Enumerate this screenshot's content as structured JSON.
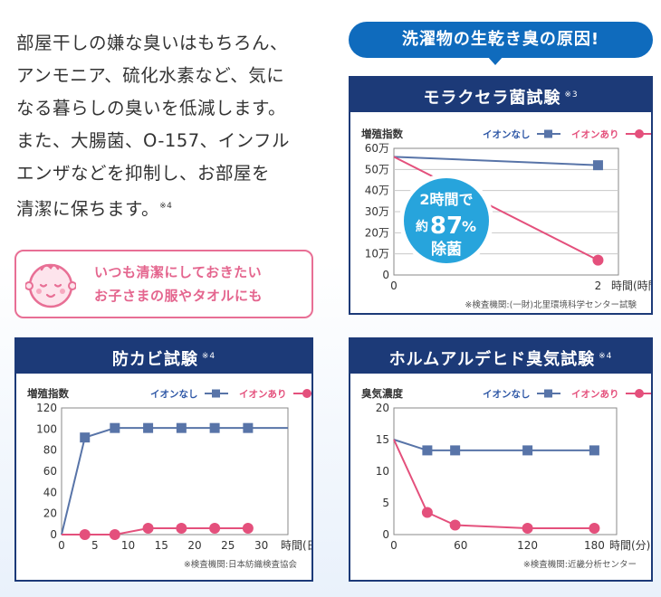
{
  "intro": {
    "lines": [
      "部屋干しの嫌な臭いはもちろん、",
      "アンモニア、硫化水素など、気に",
      "なる暮らしの臭いを低減します。",
      "また、大腸菌、O-157、インフル",
      "エンザなどを抑制し、お部屋を",
      "清潔に保ちます。"
    ],
    "note_mark": "※4"
  },
  "callout": {
    "line1": "いつも清潔にしておきたい",
    "line2": "お子さまの服やタオルにも",
    "icon": "baby-face-icon"
  },
  "cause_banner": "洗濯物の生乾き臭の原因!",
  "legend": {
    "no_ion": "イオンなし",
    "with_ion": "イオンあり"
  },
  "colors": {
    "navy": "#1c3a78",
    "blue_series": "#5874a8",
    "pink_series": "#e4507c",
    "badge": "#27a4dc"
  },
  "badge": {
    "line1": "2時間で",
    "prefix": "約",
    "number": "87",
    "percent": "%",
    "line3": "除菌"
  },
  "chart_data": [
    {
      "type": "line",
      "title": "モラクセラ菌試験",
      "title_note": "※3",
      "ylabel": "増殖指数",
      "xlabel": "時間(時間)",
      "y_ticks": [
        "0",
        "10万",
        "20万",
        "30万",
        "40万",
        "50万",
        "60万"
      ],
      "y_tick_values": [
        0,
        100000,
        200000,
        300000,
        400000,
        500000,
        600000
      ],
      "x_ticks": [
        "0",
        "2"
      ],
      "x_tick_values": [
        0,
        2
      ],
      "xlim": [
        0,
        2.2
      ],
      "ylim": [
        0,
        600000
      ],
      "series": [
        {
          "name": "イオンなし",
          "x": [
            0,
            2
          ],
          "y": [
            560000,
            520000
          ]
        },
        {
          "name": "イオンあり",
          "x": [
            0,
            2
          ],
          "y": [
            560000,
            70000
          ]
        }
      ],
      "markers": {
        "イオンなし": [
          1
        ],
        "イオンあり": [
          1
        ]
      },
      "source": "※検査機関:(一財)北里環境科学センター試験"
    },
    {
      "type": "line",
      "title": "防カビ試験",
      "title_note": "※4",
      "ylabel": "増殖指数",
      "xlabel": "時間(日)",
      "y_ticks": [
        "0",
        "20",
        "40",
        "60",
        "80",
        "100",
        "120"
      ],
      "y_tick_values": [
        0,
        20,
        40,
        60,
        80,
        100,
        120
      ],
      "x_ticks": [
        "0",
        "5",
        "10",
        "15",
        "20",
        "25",
        "30"
      ],
      "x_tick_values": [
        0,
        5,
        10,
        15,
        20,
        25,
        30
      ],
      "xlim": [
        0,
        34
      ],
      "ylim": [
        0,
        120
      ],
      "series": [
        {
          "name": "イオンなし",
          "x": [
            0,
            3.5,
            8,
            13,
            18,
            23,
            28,
            34
          ],
          "y": [
            0,
            92,
            101,
            101,
            101,
            101,
            101,
            101
          ]
        },
        {
          "name": "イオンあり",
          "x": [
            0,
            3.5,
            8,
            13,
            18,
            23,
            28
          ],
          "y": [
            0,
            0,
            0,
            6,
            6,
            6,
            6
          ]
        }
      ],
      "markers": {
        "イオンなし": [
          1,
          2,
          3,
          4,
          5,
          6
        ],
        "イオンあり": [
          1,
          2,
          3,
          4,
          5,
          6
        ]
      },
      "source": "※検査機関:日本紡織検査協会"
    },
    {
      "type": "line",
      "title": "ホルムアルデヒド臭気試験",
      "title_note": "※4",
      "ylabel": "臭気濃度",
      "xlabel": "時間(分)",
      "y_ticks": [
        "0",
        "5",
        "10",
        "15",
        "20"
      ],
      "y_tick_values": [
        0,
        5,
        10,
        15,
        20
      ],
      "x_ticks": [
        "0",
        "60",
        "120",
        "180"
      ],
      "x_tick_values": [
        0,
        60,
        120,
        180
      ],
      "xlim": [
        0,
        200
      ],
      "ylim": [
        0,
        20
      ],
      "series": [
        {
          "name": "イオンなし",
          "x": [
            0,
            30,
            55,
            120,
            180
          ],
          "y": [
            15,
            13.3,
            13.3,
            13.3,
            13.3
          ]
        },
        {
          "name": "イオンあり",
          "x": [
            0,
            30,
            55,
            120,
            180
          ],
          "y": [
            15,
            3.5,
            1.5,
            1,
            1
          ]
        }
      ],
      "markers": {
        "イオンなし": [
          1,
          2,
          3,
          4
        ],
        "イオンあり": [
          1,
          2,
          3,
          4
        ]
      },
      "source": "※検査機関:近畿分析センター"
    }
  ]
}
